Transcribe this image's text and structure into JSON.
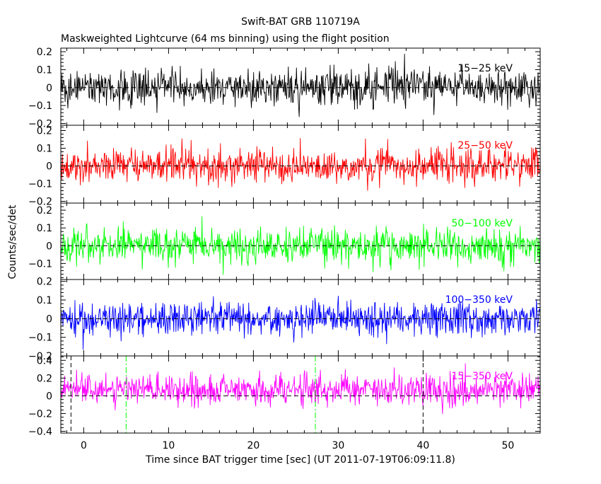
{
  "chart_data": {
    "type": "line",
    "title": "Swift-BAT GRB 110719A",
    "subtitle": "Maskweighted Lightcurve (64 ms binning) using the flight position",
    "xlabel": "Time since BAT trigger time [sec] (UT 2011-07-19T06:09:11.8)",
    "ylabel": "Counts/sec/det",
    "xlim": [
      -2.7,
      53.8
    ],
    "xticks": [
      0,
      10,
      20,
      30,
      40,
      50
    ],
    "bin_width_sec": 0.064,
    "grid": false,
    "panels": [
      {
        "name": "15-25 keV",
        "label": "15−25 keV",
        "color": "#000000",
        "ylim": [
          -0.21,
          0.22
        ],
        "yticks": [
          -0.2,
          -0.1,
          0,
          0.1,
          0.2
        ],
        "ytick_labels": [
          "−0.2",
          "−0.1",
          "0",
          "0.1",
          "0.2"
        ],
        "noise_sigma": 0.05,
        "level": 0.0
      },
      {
        "name": "25-50 keV",
        "label": "25−50 keV",
        "color": "#ff0000",
        "ylim": [
          -0.21,
          0.23
        ],
        "yticks": [
          -0.2,
          -0.1,
          0,
          0.1,
          0.2
        ],
        "ytick_labels": [
          "−0.2",
          "−0.1",
          "0",
          "0.1",
          "0.2"
        ],
        "noise_sigma": 0.05,
        "level": 0.0
      },
      {
        "name": "50-100 keV",
        "label": "50−100 keV",
        "color": "#00ff00",
        "ylim": [
          -0.19,
          0.24
        ],
        "yticks": [
          -0.1,
          0,
          0.1,
          0.2
        ],
        "ytick_labels": [
          "−0.1",
          "0",
          "0.1",
          "0.2"
        ],
        "noise_sigma": 0.05,
        "level": 0.0
      },
      {
        "name": "100-350 keV",
        "label": "100−350 keV",
        "color": "#0000ff",
        "ylim": [
          -0.2,
          0.21
        ],
        "yticks": [
          -0.2,
          -0.1,
          0,
          0.1,
          0.2
        ],
        "ytick_labels": [
          "−0.2",
          "−0.1",
          "0",
          "0.1",
          "0.2"
        ],
        "noise_sigma": 0.045,
        "level": 0.0
      },
      {
        "name": "15-350 keV",
        "label": "15−350 keV",
        "color": "#ff00ff",
        "ylim": [
          -0.42,
          0.45
        ],
        "yticks": [
          -0.4,
          -0.2,
          0,
          0.2,
          0.4
        ],
        "ytick_labels": [
          "−0.4",
          "−0.2",
          "0",
          "0.2",
          "0.4"
        ],
        "noise_sigma": 0.09,
        "level": 0.07
      }
    ],
    "x_tick_labels": [
      "0",
      "10",
      "20",
      "30",
      "40",
      "50"
    ],
    "markers": [
      {
        "x": -1.5,
        "style": "dashed",
        "color": "#000000",
        "panel": "15-350 keV"
      },
      {
        "x": 5.0,
        "style": "dashdot",
        "color": "#00ff00",
        "panel": "15-350 keV"
      },
      {
        "x": 27.3,
        "style": "dashdot",
        "color": "#00ff00",
        "panel": "15-350 keV"
      },
      {
        "x": 40.0,
        "style": "dashed",
        "color": "#000000",
        "panel": "15-350 keV"
      }
    ]
  }
}
